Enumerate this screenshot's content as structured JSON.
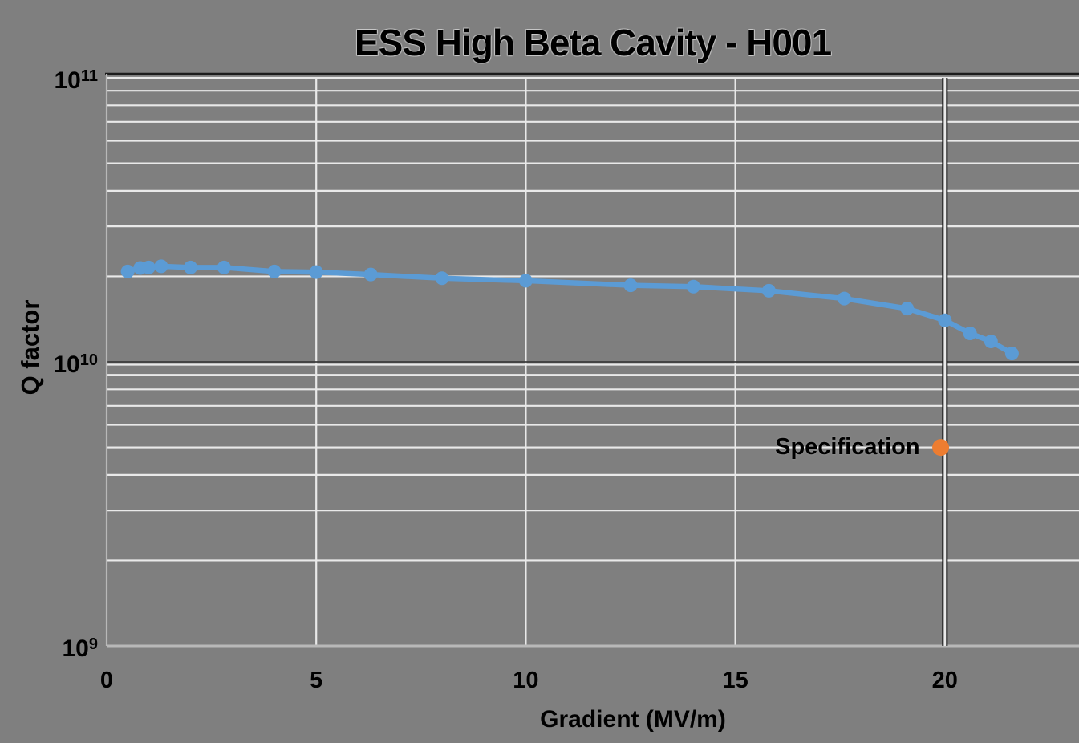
{
  "title": "ESS High Beta Cavity - H001",
  "colors": {
    "background": "#7f7f7f",
    "grid_minor": "#e9e9e9",
    "grid_border": "#b8b8b8",
    "grid_major_dark": "#1c1c1c",
    "series_blue": "#5b9bd5",
    "spec_orange": "#ed7d31",
    "text": "#000000"
  },
  "chart_data": {
    "type": "line",
    "title": "ESS High Beta Cavity - H001",
    "xlabel": "Gradient (MV/m)",
    "ylabel": "Q factor",
    "x_range": [
      0,
      23.2
    ],
    "y_range": [
      1000000000.0,
      100000000000.0
    ],
    "y_scale": "log",
    "grid": "on",
    "legend_position": "none",
    "x_ticks": [
      0,
      5,
      10,
      15,
      20
    ],
    "y_ticks": [
      {
        "mantissa": 10,
        "exp": 11,
        "value": 100000000000.0
      },
      {
        "mantissa": 10,
        "exp": 10,
        "value": 10000000000.0
      },
      {
        "mantissa": 10,
        "exp": 9,
        "value": 1000000000.0
      }
    ],
    "minor_grid_mantissas": [
      2,
      3,
      4,
      5,
      6,
      7,
      8,
      9
    ],
    "vertical_gridlines_at": [
      5,
      10,
      15
    ],
    "spec_line_x": 20.0,
    "series": [
      {
        "name": "Q factor vs gradient",
        "color": "#5b9bd5",
        "x": [
          0.5,
          0.8,
          1.0,
          1.3,
          2.0,
          2.8,
          4.0,
          5.0,
          6.3,
          8.0,
          10.0,
          12.5,
          14.0,
          15.8,
          17.6,
          19.1,
          20.0,
          20.6,
          21.1,
          21.6
        ],
        "y": [
          20800000000.0,
          21400000000.0,
          21500000000.0,
          21700000000.0,
          21500000000.0,
          21500000000.0,
          20800000000.0,
          20700000000.0,
          20300000000.0,
          19700000000.0,
          19300000000.0,
          18600000000.0,
          18400000000.0,
          17800000000.0,
          16700000000.0,
          15400000000.0,
          14000000000.0,
          12600000000.0,
          11800000000.0,
          10700000000.0
        ]
      }
    ],
    "annotations": [
      {
        "label": "Specification",
        "x": 19.9,
        "y": 5000000000.0,
        "color": "#ed7d31"
      }
    ]
  }
}
